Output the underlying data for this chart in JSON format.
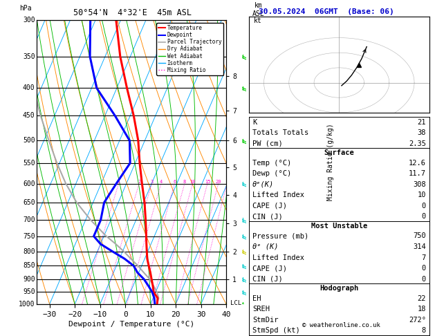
{
  "title_left": "50°54'N  4°32'E  45m ASL",
  "title_right": "30.05.2024  06GMT  (Base: 06)",
  "xlabel": "Dewpoint / Temperature (°C)",
  "bg_color": "#ffffff",
  "isotherm_color": "#00aaff",
  "dry_adiabat_color": "#ff8800",
  "wet_adiabat_color": "#00bb00",
  "mixing_ratio_color": "#ff00cc",
  "temp_profile_color": "#ff0000",
  "dewp_profile_color": "#0000ff",
  "parcel_color": "#aaaaaa",
  "pressure_profile": [
    1000,
    975,
    950,
    925,
    900,
    875,
    850,
    825,
    800,
    775,
    750,
    700,
    650,
    600,
    550,
    500,
    450,
    400,
    350,
    300
  ],
  "temp_profile": [
    12.6,
    11.8,
    9.2,
    7.8,
    6.2,
    4.6,
    2.8,
    1.0,
    -0.4,
    -1.8,
    -3.2,
    -6.2,
    -9.6,
    -13.8,
    -18.2,
    -22.6,
    -28.6,
    -36.0,
    -44.0,
    -51.8
  ],
  "dewp_profile": [
    11.7,
    10.5,
    8.6,
    6.0,
    3.2,
    -0.5,
    -3.2,
    -8.0,
    -14.0,
    -20.0,
    -24.0,
    -24.0,
    -25.6,
    -24.0,
    -22.0,
    -26.0,
    -36.0,
    -48.0,
    -56.0,
    -62.0
  ],
  "parcel_profile": [
    12.6,
    12.2,
    10.5,
    8.0,
    5.5,
    2.0,
    -1.5,
    -5.5,
    -9.5,
    -14.0,
    -19.0,
    -28.0,
    -36.5,
    -44.0,
    -51.0,
    -58.0,
    -65.5,
    -73.0,
    -81.0,
    -89.0
  ],
  "mixing_ratio_values": [
    1,
    2,
    3,
    4,
    6,
    8,
    10,
    15,
    20,
    25
  ],
  "km_labels": [
    1,
    2,
    3,
    4,
    5,
    6,
    7,
    8
  ],
  "km_pressures": [
    900,
    800,
    710,
    630,
    560,
    500,
    440,
    380
  ],
  "lcl_pressure": 997,
  "wind_levels": [
    {
      "P": 1000,
      "color": "#00cc00",
      "barb": [
        0,
        5
      ]
    },
    {
      "P": 950,
      "color": "#00cccc",
      "barb": [
        0,
        5
      ]
    },
    {
      "P": 900,
      "color": "#00cccc",
      "barb": [
        0,
        5
      ]
    },
    {
      "P": 850,
      "color": "#00cccc",
      "barb": [
        0,
        5
      ]
    },
    {
      "P": 800,
      "color": "#cccc00",
      "barb": [
        0,
        5
      ]
    },
    {
      "P": 750,
      "color": "#00cccc",
      "barb": [
        0,
        5
      ]
    },
    {
      "P": 700,
      "color": "#00cccc",
      "barb": [
        0,
        5
      ]
    },
    {
      "P": 600,
      "color": "#00cccc",
      "barb": [
        0,
        5
      ]
    },
    {
      "P": 500,
      "color": "#00cc00",
      "barb": [
        0,
        5
      ]
    },
    {
      "P": 400,
      "color": "#00cc00",
      "barb": [
        0,
        5
      ]
    },
    {
      "P": 350,
      "color": "#00cc00",
      "barb": [
        0,
        5
      ]
    }
  ],
  "stats": {
    "K": 21,
    "TT": 38,
    "PW": "2.35",
    "surf_temp": "12.6",
    "surf_dewp": "11.7",
    "surf_thetae": 308,
    "surf_li": 10,
    "surf_cape": 0,
    "surf_cin": 0,
    "mu_pressure": 750,
    "mu_thetae": 314,
    "mu_li": 7,
    "mu_cape": 0,
    "mu_cin": 0,
    "EH": 22,
    "SREH": 18,
    "StmDir": "272°",
    "StmSpd": 8
  }
}
